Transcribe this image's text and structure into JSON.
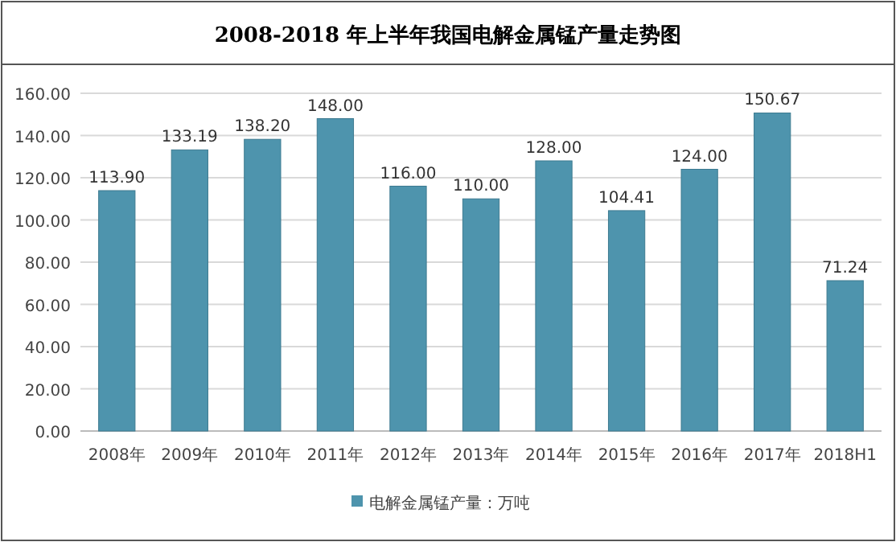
{
  "chart_data": {
    "type": "bar",
    "title": "2008-2018 年上半年我国电解金属锰产量走势图",
    "categories": [
      "2008年",
      "2009年",
      "2010年",
      "2011年",
      "2012年",
      "2013年",
      "2014年",
      "2015年",
      "2016年",
      "2017年",
      "2018H1"
    ],
    "series": [
      {
        "name": "电解金属锰产量：万吨",
        "color": "#4e94ad",
        "values": [
          113.9,
          133.19,
          138.2,
          148.0,
          116.0,
          110.0,
          128.0,
          104.41,
          124.0,
          150.67,
          71.24
        ],
        "value_labels": [
          "113.90",
          "133.19",
          "138.20",
          "148.00",
          "116.00",
          "110.00",
          "128.00",
          "104.41",
          "124.00",
          "150.67",
          "71.24"
        ]
      }
    ],
    "ylim": [
      0,
      160
    ],
    "yticks": [
      {
        "value": 0,
        "label": "0.00"
      },
      {
        "value": 20,
        "label": "20.00"
      },
      {
        "value": 40,
        "label": "40.00"
      },
      {
        "value": 60,
        "label": "60.00"
      },
      {
        "value": 80,
        "label": "80.00"
      },
      {
        "value": 100,
        "label": "100.00"
      },
      {
        "value": 120,
        "label": "120.00"
      },
      {
        "value": 140,
        "label": "140.00"
      },
      {
        "value": 160,
        "label": "160.00"
      }
    ],
    "grid": "y",
    "legend": "bottom"
  }
}
